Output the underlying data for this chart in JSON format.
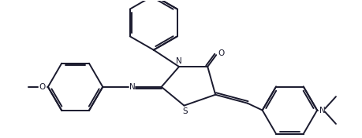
{
  "bg_color": "#ffffff",
  "line_color": "#1a1a2e",
  "line_width": 1.4,
  "figsize": [
    4.59,
    1.76
  ],
  "dpi": 100,
  "xlim": [
    0,
    9.2
  ],
  "ylim": [
    0,
    3.52
  ]
}
